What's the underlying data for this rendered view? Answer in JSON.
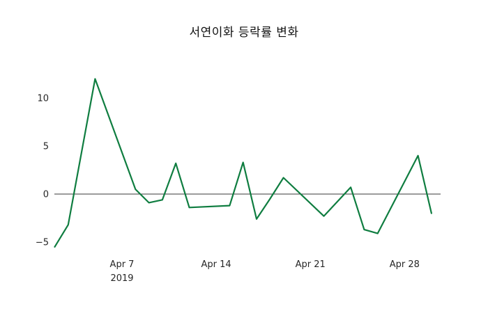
{
  "chart_data": {
    "type": "line",
    "title": "서연이화 등락률 변화",
    "series_name": "등락률",
    "x": [
      "2019-04-02",
      "2019-04-03",
      "2019-04-04",
      "2019-04-05",
      "2019-04-08",
      "2019-04-09",
      "2019-04-10",
      "2019-04-11",
      "2019-04-12",
      "2019-04-15",
      "2019-04-16",
      "2019-04-17",
      "2019-04-18",
      "2019-04-19",
      "2019-04-22",
      "2019-04-23",
      "2019-04-24",
      "2019-04-25",
      "2019-04-26",
      "2019-04-29",
      "2019-04-30"
    ],
    "values": [
      -5.5,
      -3.2,
      4.4,
      12.0,
      0.5,
      -0.9,
      -0.6,
      3.2,
      -1.4,
      -1.2,
      3.3,
      -2.6,
      -0.5,
      1.7,
      -2.3,
      -0.8,
      0.7,
      -3.7,
      -4.1,
      4.0,
      -2.0
    ],
    "xlabel": "",
    "ylabel": "",
    "ylim": [
      -6.5,
      13.5
    ],
    "grid": false,
    "legend": false,
    "zeroline": true,
    "y_ticks": [
      {
        "value": -5,
        "label": "−5"
      },
      {
        "value": 0,
        "label": "0"
      },
      {
        "value": 5,
        "label": "5"
      },
      {
        "value": 10,
        "label": "10"
      }
    ],
    "x_ticks": [
      {
        "date": "2019-04-07",
        "label": "Apr 7",
        "sublabel": "2019"
      },
      {
        "date": "2019-04-14",
        "label": "Apr 14",
        "sublabel": ""
      },
      {
        "date": "2019-04-21",
        "label": "Apr 21",
        "sublabel": ""
      },
      {
        "date": "2019-04-28",
        "label": "Apr 28",
        "sublabel": ""
      }
    ]
  },
  "colors": {
    "line": "#0f7d40",
    "zeroline": "#3a3a3a",
    "tick_text": "#262626",
    "background": "#ffffff"
  }
}
